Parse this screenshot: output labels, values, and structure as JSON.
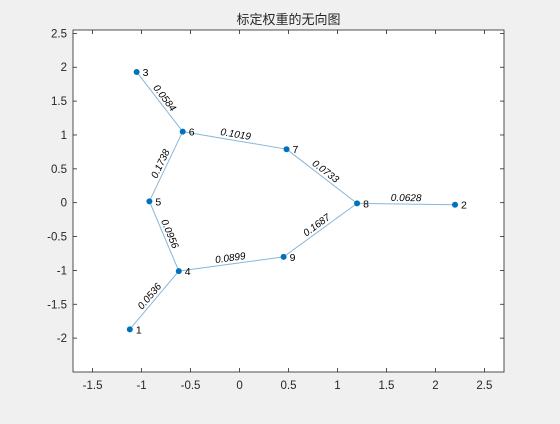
{
  "chart_data": {
    "type": "graph",
    "title": "标定权重的无向图",
    "xlim": [
      -1.7,
      2.7
    ],
    "ylim": [
      -2.5,
      2.55
    ],
    "xticks": [
      -1.5,
      -1,
      -0.5,
      0,
      0.5,
      1,
      1.5,
      2,
      2.5
    ],
    "xtick_labels": [
      "-1.5",
      "-1",
      "-0.5",
      "0",
      "0.5",
      "1",
      "1.5",
      "2",
      "2.5"
    ],
    "yticks": [
      2.5,
      2,
      1.5,
      1,
      0.5,
      0,
      -0.5,
      -1,
      -1.5,
      -2
    ],
    "ytick_labels": [
      "2.5",
      "2",
      "1.5",
      "1",
      "0.5",
      "0",
      "-0.5",
      "-1",
      "-1.5",
      "-2"
    ],
    "node_color": "#0072BD",
    "edge_color": "#86b6db",
    "nodes": [
      {
        "id": "1",
        "x": -1.12,
        "y": -1.87
      },
      {
        "id": "2",
        "x": 2.2,
        "y": -0.03
      },
      {
        "id": "3",
        "x": -1.05,
        "y": 1.93
      },
      {
        "id": "4",
        "x": -0.62,
        "y": -1.01
      },
      {
        "id": "5",
        "x": -0.92,
        "y": 0.02
      },
      {
        "id": "6",
        "x": -0.58,
        "y": 1.05
      },
      {
        "id": "7",
        "x": 0.48,
        "y": 0.79
      },
      {
        "id": "8",
        "x": 1.2,
        "y": -0.01
      },
      {
        "id": "9",
        "x": 0.45,
        "y": -0.8
      }
    ],
    "edges": [
      {
        "source": "3",
        "target": "6",
        "weight": "0.0584"
      },
      {
        "source": "6",
        "target": "7",
        "weight": "0.1019"
      },
      {
        "source": "6",
        "target": "5",
        "weight": "0.1738"
      },
      {
        "source": "7",
        "target": "8",
        "weight": "0.0733"
      },
      {
        "source": "8",
        "target": "2",
        "weight": "0.0628"
      },
      {
        "source": "5",
        "target": "4",
        "weight": "0.0956"
      },
      {
        "source": "9",
        "target": "8",
        "weight": "0.1687"
      },
      {
        "source": "4",
        "target": "9",
        "weight": "0.0899"
      },
      {
        "source": "1",
        "target": "4",
        "weight": "0.0536"
      }
    ]
  }
}
